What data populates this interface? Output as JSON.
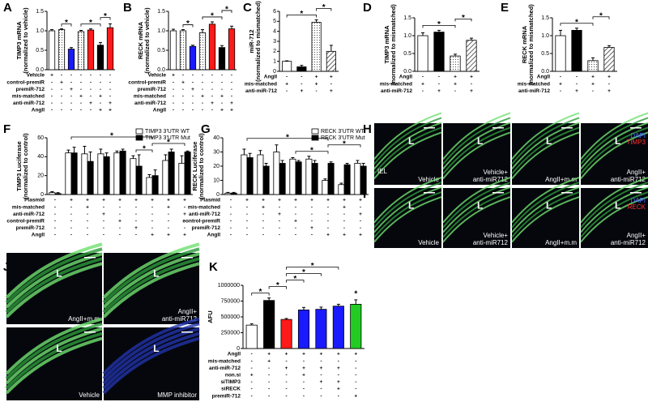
{
  "chart_data": [
    {
      "type": "bar",
      "panel": "A",
      "ylabel": [
        "TIMP3 mRNA",
        "(normalized to vehicle)"
      ],
      "ylim": [
        0,
        1.5
      ],
      "yticks": [
        {
          "value": 0,
          "label": "0.0"
        },
        {
          "value": 0.5,
          "label": "0.5"
        },
        {
          "value": 1,
          "label": "1.0"
        },
        {
          "value": 1.5,
          "label": "1.5"
        }
      ],
      "values": [
        1.0,
        1.03,
        0.53,
        0.98,
        1.02,
        0.63,
        1.08
      ],
      "errors": [
        0.03,
        0.02,
        0.04,
        0.03,
        0.03,
        0.07,
        0.1
      ],
      "colors": [
        "#ffffff",
        "dotted",
        "#1a1aff",
        "dotted",
        "#ff1a1a",
        "#000000",
        "#ff1a1a"
      ],
      "conditions": [
        {
          "label": "Vehicle",
          "marks": [
            "+",
            "-",
            "-",
            "-",
            "-",
            "-",
            "-"
          ]
        },
        {
          "label": "control-premiR",
          "marks": [
            "-",
            "+",
            "-",
            "-",
            "-",
            "-",
            "-"
          ]
        },
        {
          "label": "premiR-712",
          "marks": [
            "-",
            "-",
            "+",
            "-",
            "-",
            "-",
            "-"
          ]
        },
        {
          "label": "mis-matched",
          "marks": [
            "-",
            "-",
            "-",
            "+",
            "-",
            "+",
            "-"
          ]
        },
        {
          "label": "anti-miR-712",
          "marks": [
            "-",
            "-",
            "-",
            "-",
            "+",
            "-",
            "+"
          ]
        },
        {
          "label": "AngII",
          "marks": [
            "-",
            "-",
            "-",
            "-",
            "-",
            "+",
            "+"
          ]
        }
      ],
      "significance": [
        {
          "bars": [
            1,
            2
          ],
          "text": "*"
        },
        {
          "bars": [
            3,
            5
          ],
          "text": "*"
        },
        {
          "bars": [
            5,
            6
          ],
          "text": "*"
        }
      ]
    },
    {
      "type": "bar",
      "panel": "B",
      "ylabel": [
        "RECK mRNA",
        "(normalized to vehicle)"
      ],
      "ylim": [
        0,
        1.5
      ],
      "yticks": [
        {
          "value": 0,
          "label": "0.0"
        },
        {
          "value": 0.5,
          "label": "0.5"
        },
        {
          "value": 1,
          "label": "1.0"
        },
        {
          "value": 1.5,
          "label": "1.5"
        }
      ],
      "values": [
        1.0,
        1.0,
        0.6,
        0.95,
        1.17,
        0.57,
        1.05
      ],
      "errors": [
        0.04,
        0.03,
        0.03,
        0.08,
        0.06,
        0.05,
        0.07
      ],
      "colors": [
        "#ffffff",
        "dotted",
        "#1a1aff",
        "dotted",
        "#ff1a1a",
        "#000000",
        "#ff1a1a"
      ],
      "conditions": [
        {
          "label": "Vehicle",
          "marks": [
            "+",
            "-",
            "-",
            "-",
            "-",
            "-",
            "-"
          ]
        },
        {
          "label": "control-premiR",
          "marks": [
            "-",
            "+",
            "-",
            "-",
            "-",
            "-",
            "-"
          ]
        },
        {
          "label": "premiR-712",
          "marks": [
            "-",
            "-",
            "+",
            "-",
            "-",
            "-",
            "-"
          ]
        },
        {
          "label": "mis-matched",
          "marks": [
            "-",
            "-",
            "-",
            "+",
            "-",
            "+",
            "-"
          ]
        },
        {
          "label": "anti-miR-712",
          "marks": [
            "-",
            "-",
            "-",
            "-",
            "+",
            "-",
            "+"
          ]
        },
        {
          "label": "AngII",
          "marks": [
            "-",
            "-",
            "-",
            "-",
            "-",
            "+",
            "+"
          ]
        }
      ],
      "significance": [
        {
          "bars": [
            1,
            2
          ],
          "text": "*"
        },
        {
          "bars": [
            3,
            5
          ],
          "text": "*"
        },
        {
          "bars": [
            5,
            6
          ],
          "text": "*"
        }
      ]
    },
    {
      "type": "bar",
      "panel": "C",
      "ylabel": [
        "miR-712",
        "(normalized to mismatched)"
      ],
      "ylim": [
        0,
        6
      ],
      "yticks": [
        0,
        1,
        2,
        3,
        4,
        5,
        6
      ],
      "values": [
        1.0,
        0.45,
        4.9,
        2.0
      ],
      "errors": [
        0.05,
        0.15,
        0.25,
        0.6
      ],
      "colors": [
        "#ffffff",
        "#000000",
        "dotted",
        "hatched"
      ],
      "conditions": [
        {
          "label": "AngII",
          "marks": [
            "-",
            "-",
            "+",
            "+"
          ]
        },
        {
          "label": "mis-matched",
          "marks": [
            "+",
            "-",
            "+",
            "-"
          ]
        },
        {
          "label": "anti-miR-712",
          "marks": [
            "-",
            "+",
            "-",
            "+"
          ]
        }
      ],
      "significance": [
        {
          "bars": [
            0,
            2
          ],
          "text": "*"
        },
        {
          "bars": [
            2,
            3
          ],
          "text": "*"
        }
      ]
    },
    {
      "type": "bar",
      "panel": "D",
      "ylabel": [
        "TIMP3 mRNA",
        "(normalized to mismatched)"
      ],
      "ylim": [
        0,
        1.5
      ],
      "yticks": [
        {
          "value": 0,
          "label": "0.0"
        },
        {
          "value": 0.5,
          "label": "0.5"
        },
        {
          "value": 1,
          "label": "1.0"
        },
        {
          "value": 1.5,
          "label": "1.5"
        }
      ],
      "values": [
        1.0,
        1.1,
        0.43,
        0.87
      ],
      "errors": [
        0.08,
        0.05,
        0.05,
        0.06
      ],
      "colors": [
        "#ffffff",
        "#000000",
        "dotted",
        "hatched"
      ],
      "conditions": [
        {
          "label": "AngII",
          "marks": [
            "-",
            "-",
            "+",
            "+"
          ]
        },
        {
          "label": "mis-matched",
          "marks": [
            "+",
            "-",
            "+",
            "-"
          ]
        },
        {
          "label": "anti-miR-712",
          "marks": [
            "-",
            "+",
            "-",
            "+"
          ]
        }
      ],
      "significance": [
        {
          "bars": [
            0,
            2
          ],
          "text": "*"
        },
        {
          "bars": [
            2,
            3
          ],
          "text": "*"
        }
      ]
    },
    {
      "type": "bar",
      "panel": "E",
      "ylabel": [
        "RECK mRNA",
        "(normalized to mismatched)"
      ],
      "ylim": [
        0,
        1.5
      ],
      "yticks": [
        {
          "value": 0,
          "label": "0.0"
        },
        {
          "value": 0.5,
          "label": "0.5"
        },
        {
          "value": 1,
          "label": "1.0"
        },
        {
          "value": 1.5,
          "label": "1.5"
        }
      ],
      "values": [
        1.0,
        1.15,
        0.3,
        0.67
      ],
      "errors": [
        0.15,
        0.06,
        0.08,
        0.05
      ],
      "colors": [
        "#ffffff",
        "#000000",
        "dotted",
        "hatched"
      ],
      "conditions": [
        {
          "label": "AngII",
          "marks": [
            "-",
            "-",
            "+",
            "+"
          ]
        },
        {
          "label": "mis-matched",
          "marks": [
            "+",
            "-",
            "+",
            "-"
          ]
        },
        {
          "label": "anti-miR-712",
          "marks": [
            "-",
            "+",
            "-",
            "+"
          ]
        }
      ],
      "significance": [
        {
          "bars": [
            0,
            2
          ],
          "text": "*"
        },
        {
          "bars": [
            2,
            3
          ],
          "text": "*"
        }
      ]
    },
    {
      "type": "grouped_bar",
      "panel": "F",
      "ylabel": [
        "TIMP3 Luciferase",
        "(normalized to control)"
      ],
      "ylim": [
        0,
        60
      ],
      "yticks": [
        0,
        20,
        40,
        60
      ],
      "series": [
        {
          "name": "TIMP3 3'UTR WT",
          "color": "#ffffff",
          "values": [
            2,
            44,
            43,
            43,
            44,
            38,
            18,
            36,
            33
          ],
          "errors": [
            1,
            3,
            8,
            5,
            2,
            3,
            3,
            6,
            8
          ]
        },
        {
          "name": "TIMP3 3'UTR Mut",
          "color": "#000000",
          "values": [
            1,
            44,
            35,
            40,
            46,
            30,
            20,
            45,
            45
          ],
          "errors": [
            1,
            6,
            10,
            4,
            2,
            12,
            6,
            3,
            1
          ]
        }
      ],
      "conditions": [
        {
          "label": "Plasmid",
          "marks": [
            "-",
            "+",
            "+",
            "+",
            "+",
            "+",
            "+",
            "+",
            "+"
          ]
        },
        {
          "label": "mis-matched",
          "marks": [
            "-",
            "-",
            "+",
            "-",
            "-",
            "-",
            "-",
            "+",
            "-"
          ]
        },
        {
          "label": "anti-miR-712",
          "marks": [
            "-",
            "-",
            "-",
            "+",
            "-",
            "-",
            "-",
            "-",
            "+"
          ]
        },
        {
          "label": "control-premiR",
          "marks": [
            "-",
            "-",
            "-",
            "-",
            "+",
            "-",
            "-",
            "-",
            "-"
          ]
        },
        {
          "label": "premiR-712",
          "marks": [
            "-",
            "-",
            "-",
            "-",
            "-",
            "+",
            "-",
            "-",
            "-"
          ]
        },
        {
          "label": "AngII",
          "marks": [
            "-",
            "-",
            "-",
            "-",
            "-",
            "-",
            "+",
            "+",
            "+"
          ]
        }
      ],
      "significance": [
        {
          "bars": [
            5,
            6
          ],
          "text": "*"
        },
        {
          "bars": [
            6,
            8
          ],
          "text": "*"
        },
        {
          "bars": [
            1,
            6
          ],
          "text": "*"
        }
      ]
    },
    {
      "type": "grouped_bar",
      "panel": "G",
      "ylabel": [
        "RECK Luciferase",
        "(normalized to control)"
      ],
      "ylim": [
        0,
        40
      ],
      "yticks": [
        0,
        10,
        20,
        30,
        40
      ],
      "series": [
        {
          "name": "RECK 3'UTR WT",
          "color": "#ffffff",
          "values": [
            1,
            28,
            28,
            30,
            25,
            25,
            10,
            7,
            22
          ],
          "errors": [
            0.5,
            4,
            3,
            5,
            1,
            2,
            1,
            1,
            2
          ]
        },
        {
          "name": "RECK 3'UTR Mut",
          "color": "#000000",
          "values": [
            1,
            26,
            20,
            22,
            23,
            22,
            22,
            21,
            20
          ],
          "errors": [
            0.5,
            3,
            2,
            2,
            1,
            2,
            1,
            1,
            2
          ]
        }
      ],
      "conditions": [
        {
          "label": "Plasmid",
          "marks": [
            "-",
            "+",
            "+",
            "+",
            "+",
            "+",
            "+",
            "+",
            "+"
          ]
        },
        {
          "label": "mis-matched",
          "marks": [
            "-",
            "-",
            "+",
            "-",
            "-",
            "-",
            "-",
            "+",
            "-"
          ]
        },
        {
          "label": "anti-miR-712",
          "marks": [
            "-",
            "-",
            "-",
            "+",
            "-",
            "-",
            "-",
            "-",
            "+"
          ]
        },
        {
          "label": "control-premiR",
          "marks": [
            "-",
            "-",
            "-",
            "-",
            "+",
            "-",
            "-",
            "-",
            "-"
          ]
        },
        {
          "label": "premiR-712",
          "marks": [
            "-",
            "-",
            "-",
            "-",
            "-",
            "+",
            "-",
            "-",
            "-"
          ]
        },
        {
          "label": "AngII",
          "marks": [
            "-",
            "-",
            "-",
            "-",
            "-",
            "-",
            "+",
            "+",
            "+"
          ]
        }
      ],
      "significance": [
        {
          "bars": [
            4,
            6
          ],
          "text": "*"
        },
        {
          "bars": [
            6,
            8
          ],
          "text": "*"
        },
        {
          "bars": [
            1,
            6
          ],
          "text": "*"
        }
      ]
    },
    {
      "type": "bar",
      "panel": "K",
      "ylabel": [
        "AFU"
      ],
      "ylim": [
        0,
        1000000
      ],
      "yticks": [
        0,
        250000,
        500000,
        750000,
        1000000
      ],
      "values": [
        370000,
        760000,
        460000,
        610000,
        620000,
        670000,
        700000
      ],
      "errors": [
        20000,
        40000,
        15000,
        40000,
        35000,
        30000,
        70000
      ],
      "colors": [
        "#ffffff",
        "#000000",
        "#ff1a1a",
        "#1a1aff",
        "#1a1aff",
        "#1a1aff",
        "#22cc22"
      ],
      "conditions": [
        {
          "label": "AngII",
          "marks": [
            "-",
            "+",
            "+",
            "+",
            "+",
            "+",
            "+"
          ]
        },
        {
          "label": "mis-matched",
          "marks": [
            "-",
            "+",
            "-",
            "-",
            "-",
            "-",
            "-"
          ]
        },
        {
          "label": "anti-miR-712",
          "marks": [
            "-",
            "-",
            "+",
            "+",
            "+",
            "+",
            "-"
          ]
        },
        {
          "label": "non.si",
          "marks": [
            "+",
            "-",
            "-",
            "+",
            "-",
            "-",
            "-"
          ]
        },
        {
          "label": "siTIMP3",
          "marks": [
            "-",
            "-",
            "-",
            "-",
            "+",
            "+",
            "-"
          ]
        },
        {
          "label": "siRECK",
          "marks": [
            "-",
            "-",
            "-",
            "-",
            "-",
            "+",
            "-"
          ]
        },
        {
          "label": "premiR-712",
          "marks": [
            "-",
            "-",
            "-",
            "-",
            "-",
            "-",
            "+"
          ]
        }
      ],
      "significance": [
        {
          "bars": [
            0,
            1
          ],
          "text": "*"
        },
        {
          "bars": [
            1,
            2
          ],
          "text": "*"
        },
        {
          "bars": [
            2,
            3
          ],
          "text": "*"
        },
        {
          "bars": [
            2,
            4
          ],
          "text": "*"
        },
        {
          "bars": [
            2,
            5
          ],
          "text": "*"
        },
        {
          "bars": [
            6,
            6
          ],
          "text": "*"
        }
      ]
    }
  ],
  "micrographs": [
    {
      "panel": "H",
      "legend": [
        "DAPI",
        "TIMP3"
      ],
      "tiles": [
        {
          "lumen": "L",
          "extra": "IEL",
          "caption": [
            "Vehicle"
          ]
        },
        {
          "lumen": "L",
          "caption": [
            "Vehicle+",
            "anti-miR712"
          ]
        },
        {
          "lumen": "L",
          "caption": [
            "AngII+m.m"
          ]
        },
        {
          "lumen": "L",
          "caption": [
            "AngII+",
            "anti-miR712"
          ]
        }
      ]
    },
    {
      "panel": "I",
      "legend": [
        "DAPI",
        "RECK"
      ],
      "tiles": [
        {
          "lumen": "L",
          "caption": [
            "Vehicle"
          ]
        },
        {
          "lumen": "L",
          "caption": [
            "Vehicle+",
            "anti-miR712"
          ]
        },
        {
          "lumen": "L",
          "caption": [
            "AngII+m.m"
          ]
        },
        {
          "lumen": "L",
          "caption": [
            "AngII+",
            "anti-miR712"
          ]
        }
      ]
    },
    {
      "panel": "J",
      "tiles": [
        {
          "lumen": "L",
          "caption": [
            "AngII+m.m"
          ]
        },
        {
          "lumen": "L",
          "caption": [
            "AngII+",
            "anti-miR712"
          ]
        },
        {
          "lumen": "L",
          "caption": [
            "Vehicle"
          ]
        },
        {
          "lumen": "L",
          "caption": [
            "MMP inhibitor"
          ]
        }
      ]
    }
  ]
}
